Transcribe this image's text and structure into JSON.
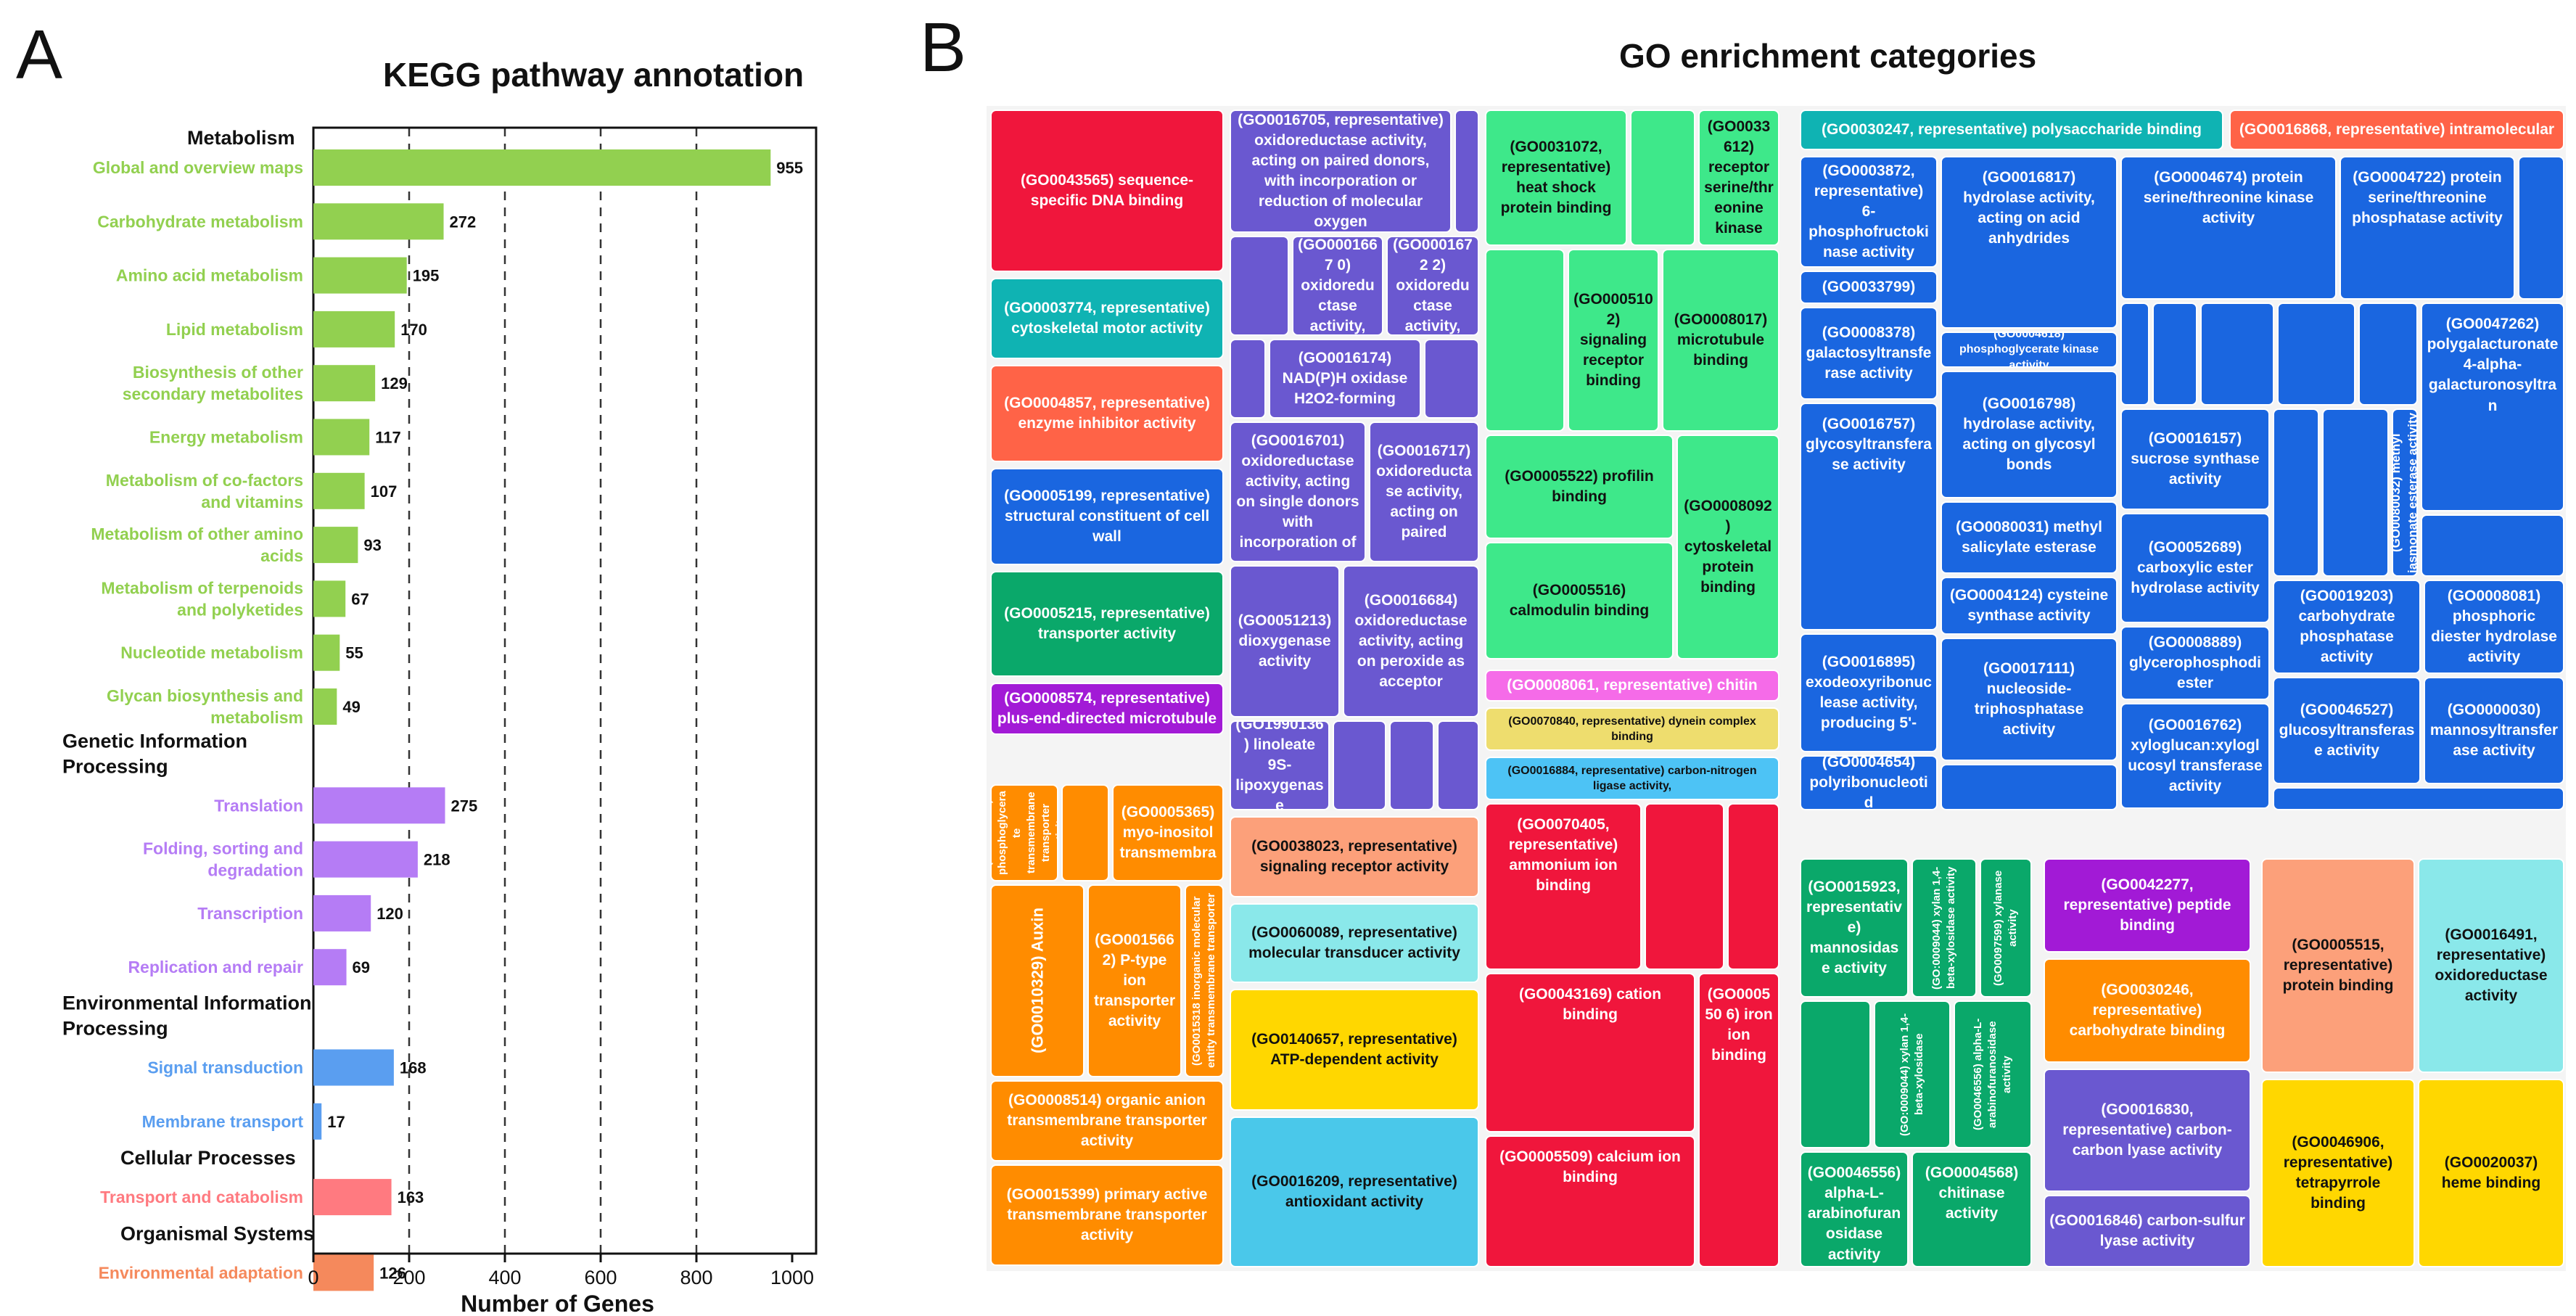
{
  "panel_a": {
    "letter": "A",
    "chart_data": {
      "type": "bar",
      "orientation": "horizontal",
      "title": "KEGG pathway annotation",
      "xlabel": "Number of Genes",
      "ylabel": "",
      "xlim": [
        0,
        1050
      ],
      "xticks": [
        0,
        200,
        400,
        600,
        800,
        1000
      ],
      "grid": "dashed vertical lines at 200, 400, 600, 800",
      "groups": [
        {
          "name": "Metabolism",
          "color": "#92d050",
          "items": [
            {
              "label": "Global and overview maps",
              "value": 955
            },
            {
              "label": "Carbohydrate metabolism",
              "value": 272
            },
            {
              "label": "Amino acid metabolism",
              "value": 195
            },
            {
              "label": "Lipid metabolism",
              "value": 170
            },
            {
              "label": "Biosynthesis of other secondary metabolites",
              "value": 129
            },
            {
              "label": "Energy metabolism",
              "value": 117
            },
            {
              "label": "Metabolism of co-factors and vitamins",
              "value": 107
            },
            {
              "label": "Metabolism of other amino acids",
              "value": 93
            },
            {
              "label": "Metabolism of terpenoids and polyketides",
              "value": 67
            },
            {
              "label": "Nucleotide metabolism",
              "value": 55
            },
            {
              "label": "Glycan biosynthesis and metabolism",
              "value": 49
            }
          ]
        },
        {
          "name": "Genetic Information Processing",
          "color": "#b57cf5",
          "items": [
            {
              "label": "Translation",
              "value": 275
            },
            {
              "label": "Folding, sorting and degradation",
              "value": 218
            },
            {
              "label": "Transcription",
              "value": 120
            },
            {
              "label": "Replication and repair",
              "value": 69
            }
          ]
        },
        {
          "name": "Environmental Information Processing",
          "color": "#5a9ef0",
          "items": [
            {
              "label": "Signal transduction",
              "value": 168
            },
            {
              "label": "Membrane transport",
              "value": 17
            }
          ]
        },
        {
          "name": "Cellular Processes",
          "color": "#ff7a80",
          "items": [
            {
              "label": "Transport and catabolism",
              "value": 163
            }
          ]
        },
        {
          "name": "Organismal Systems",
          "color": "#f5895c",
          "items": [
            {
              "label": "Environmental adaptation",
              "value": 126
            }
          ]
        }
      ]
    }
  },
  "panel_b": {
    "letter": "B",
    "chart_data": {
      "type": "treemap",
      "title": "GO enrichment categories",
      "tiles": [
        {
          "label": "(GO0043565) sequence-specific DNA binding",
          "color": "#f0163c"
        },
        {
          "label": "(GO0003774, representative) cytoskeletal motor activity",
          "color": "#0fb3b3"
        },
        {
          "label": "(GO0004857, representative) enzyme inhibitor activity",
          "color": "#ff6347"
        },
        {
          "label": "(GO0005199, representative) structural constituent of cell wall",
          "color": "#1a66e0"
        },
        {
          "label": "(GO0005215, representative) transporter activity",
          "color": "#0aa86a"
        },
        {
          "label": "(GO0008574, representative) plus-end-directed microtubule",
          "color": "#a21ad6"
        },
        {
          "label": "(GO0016705, representative) oxidoreductase activity, acting on paired donors, with incorporation or reduction of molecular oxygen",
          "color": "#6a58d0"
        },
        {
          "label": "(GO0001667 0) oxidoreductase activity,",
          "color": "#6a58d0"
        },
        {
          "label": "(GO0001672 2) oxidoreductase activity,",
          "color": "#6a58d0"
        },
        {
          "label": "(GO0016174) NAD(P)H oxidase H2O2-forming",
          "color": "#6a58d0"
        },
        {
          "label": "(GO0016701) oxidoreductase activity, acting on single donors with incorporation of",
          "color": "#6a58d0"
        },
        {
          "label": "(GO0016717) oxidoreductase activity, acting on paired",
          "color": "#6a58d0"
        },
        {
          "label": "(GO0051213) dioxygenase activity",
          "color": "#6a58d0"
        },
        {
          "label": "(GO0016684) oxidoreductase activity, acting on peroxide as acceptor",
          "color": "#6a58d0"
        },
        {
          "label": "(GO1990136) linoleate 9S-lipoxygenase",
          "color": "#6a58d0"
        },
        {
          "label": "(GO0031072, representative) heat shock protein binding",
          "color": "#3ee88a"
        },
        {
          "label": "(GO0033612) receptor serine/threonine kinase",
          "color": "#3ee88a"
        },
        {
          "label": "(GO000510 2) signaling receptor binding",
          "color": "#3ee88a"
        },
        {
          "label": "(GO0008017) microtubule binding",
          "color": "#3ee88a"
        },
        {
          "label": "(GO0005522) profilin binding",
          "color": "#3ee88a"
        },
        {
          "label": "(GO0008092) cytoskeletal protein binding",
          "color": "#3ee88a"
        },
        {
          "label": "(GO0005516) calmodulin binding",
          "color": "#3ee88a"
        },
        {
          "label": "(GO0008061, representative) chitin",
          "color": "#f56be8"
        },
        {
          "label": "(GO0070840, representative) dynein complex binding",
          "color": "#eedd6e"
        },
        {
          "label": "(GO0016884, representative) carbon-nitrogen ligase activity,",
          "color": "#4dc3f5"
        },
        {
          "label": "(GO0030247, representative) polysaccharide binding",
          "color": "#0fb3b3"
        },
        {
          "label": "(GO0016868, representative) intramolecular",
          "color": "#ff6347"
        },
        {
          "label": "(GO0003872, representative) 6-phosphofructokinase activity",
          "color": "#1a66e0"
        },
        {
          "label": "(GO0016817) hydrolase activity, acting on acid anhydrides",
          "color": "#1a66e0"
        },
        {
          "label": "(GO0004674) protein serine/threonine kinase activity",
          "color": "#1a66e0"
        },
        {
          "label": "(GO0004722) protein serine/threonine phosphatase activity",
          "color": "#1a66e0"
        },
        {
          "label": "(GO0033799)",
          "color": "#1a66e0"
        },
        {
          "label": "(GO0008378) galactosyltransferase activity",
          "color": "#1a66e0"
        },
        {
          "label": "(GO0004618) phosphoglycerate kinase activity",
          "color": "#1a66e0"
        },
        {
          "label": "(GO0016798) hydrolase activity, acting on glycosyl bonds",
          "color": "#1a66e0"
        },
        {
          "label": "(GO0047262) polygalacturonate 4-alpha-galacturonosyltran",
          "color": "#1a66e0"
        },
        {
          "label": "(GO0016157) sucrose synthase activity",
          "color": "#1a66e0"
        },
        {
          "label": "(GO0080032) methyl jasmonate esterase activity",
          "color": "#1a66e0"
        },
        {
          "label": "(GO0016757) glycosyltransferase activity",
          "color": "#1a66e0"
        },
        {
          "label": "(GO0052689) carboxylic ester hydrolase activity",
          "color": "#1a66e0"
        },
        {
          "label": "(GO0080031) methyl salicylate esterase",
          "color": "#1a66e0"
        },
        {
          "label": "(GO0019203) carbohydrate phosphatase activity",
          "color": "#1a66e0"
        },
        {
          "label": "(GO0008081) phosphoric diester hydrolase activity",
          "color": "#1a66e0"
        },
        {
          "label": "(GO0004124) cysteine synthase activity",
          "color": "#1a66e0"
        },
        {
          "label": "(GO0016895) exodeoxyribonuclease activity, producing 5'-",
          "color": "#1a66e0"
        },
        {
          "label": "(GO0017111) nucleoside-triphosphatase activity",
          "color": "#1a66e0"
        },
        {
          "label": "(GO0008889) glycerophosphodiester",
          "color": "#1a66e0"
        },
        {
          "label": "(GO0046527) glucosyltransferase activity",
          "color": "#1a66e0"
        },
        {
          "label": "(GO0000030) mannosyltransferase activity",
          "color": "#1a66e0"
        },
        {
          "label": "(GO0016762) xyloglucan:xyloglucosyl transferase activity",
          "color": "#1a66e0"
        },
        {
          "label": "(GO0004654) polyribonucleotid",
          "color": "#1a66e0"
        },
        {
          "label": "(GO0015131) phosphoglycerate transmembrane transporter activity",
          "color": "#ff8c00"
        },
        {
          "label": "(GO0005365) myo-inositol transmembra",
          "color": "#ff8c00"
        },
        {
          "label": "(GO0010329) Auxin",
          "color": "#ff8c00"
        },
        {
          "label": "(GO0015662) P-type ion transporter activity",
          "color": "#ff8c00"
        },
        {
          "label": "(GO0015318 inorganic molecular entity transmembrane transporter",
          "color": "#ff8c00"
        },
        {
          "label": "(GO0008514) organic anion transmembrane transporter activity",
          "color": "#ff8c00"
        },
        {
          "label": "(GO0015399) primary active transmembrane transporter activity",
          "color": "#ff8c00"
        },
        {
          "label": "(GO0038023, representative) signaling receptor activity",
          "color": "#fca07a"
        },
        {
          "label": "(GO0060089, representative) molecular transducer activity",
          "color": "#8ae8ea"
        },
        {
          "label": "(GO0140657, representative) ATP-dependent activity",
          "color": "#ffd700"
        },
        {
          "label": "(GO0016209, representative) antioxidant activity",
          "color": "#4ac8ea"
        },
        {
          "label": "(GO0070405, representative) ammonium ion binding",
          "color": "#f0163c"
        },
        {
          "label": "(GO0043169) cation binding",
          "color": "#f0163c"
        },
        {
          "label": "(GO000550 6) iron ion binding",
          "color": "#f0163c"
        },
        {
          "label": "(GO0005509) calcium ion binding",
          "color": "#f0163c"
        },
        {
          "label": "(GO0015923, representative) mannosidase activity",
          "color": "#0aa86a"
        },
        {
          "label": "(GO:0009044) xylan 1,4-beta-xylosidase activity",
          "color": "#0aa86a"
        },
        {
          "label": "(GO0097599) xylanase activity",
          "color": "#0aa86a"
        },
        {
          "label": "(GO:0009044) xylan 1,4-beta-xylosidase",
          "color": "#0aa86a"
        },
        {
          "label": "(GO0046556) alpha-L-arabinofuranosidase activity",
          "color": "#0aa86a"
        },
        {
          "label": "(GO0046556) alpha-L-arabinofuranosidase activity",
          "color": "#0aa86a"
        },
        {
          "label": "(GO0004568) chitinase activity",
          "color": "#0aa86a"
        },
        {
          "label": "(GO0042277, representative) peptide binding",
          "color": "#a21ad6"
        },
        {
          "label": "(GO0030246, representative) carbohydrate binding",
          "color": "#ff8c00"
        },
        {
          "label": "(GO0016830, representative) carbon-carbon lyase activity",
          "color": "#6a58d0"
        },
        {
          "label": "(GO0016846) carbon-sulfur lyase activity",
          "color": "#6a58d0"
        },
        {
          "label": "(GO0005515, representative) protein binding",
          "color": "#fca07a"
        },
        {
          "label": "(GO0016491, representative) oxidoreductase activity",
          "color": "#8ae8ea"
        },
        {
          "label": "(GO0046906, representative) tetrapyrrole binding",
          "color": "#ffd700"
        },
        {
          "label": "(GO0020037) heme binding",
          "color": "#ffd700"
        }
      ]
    }
  }
}
